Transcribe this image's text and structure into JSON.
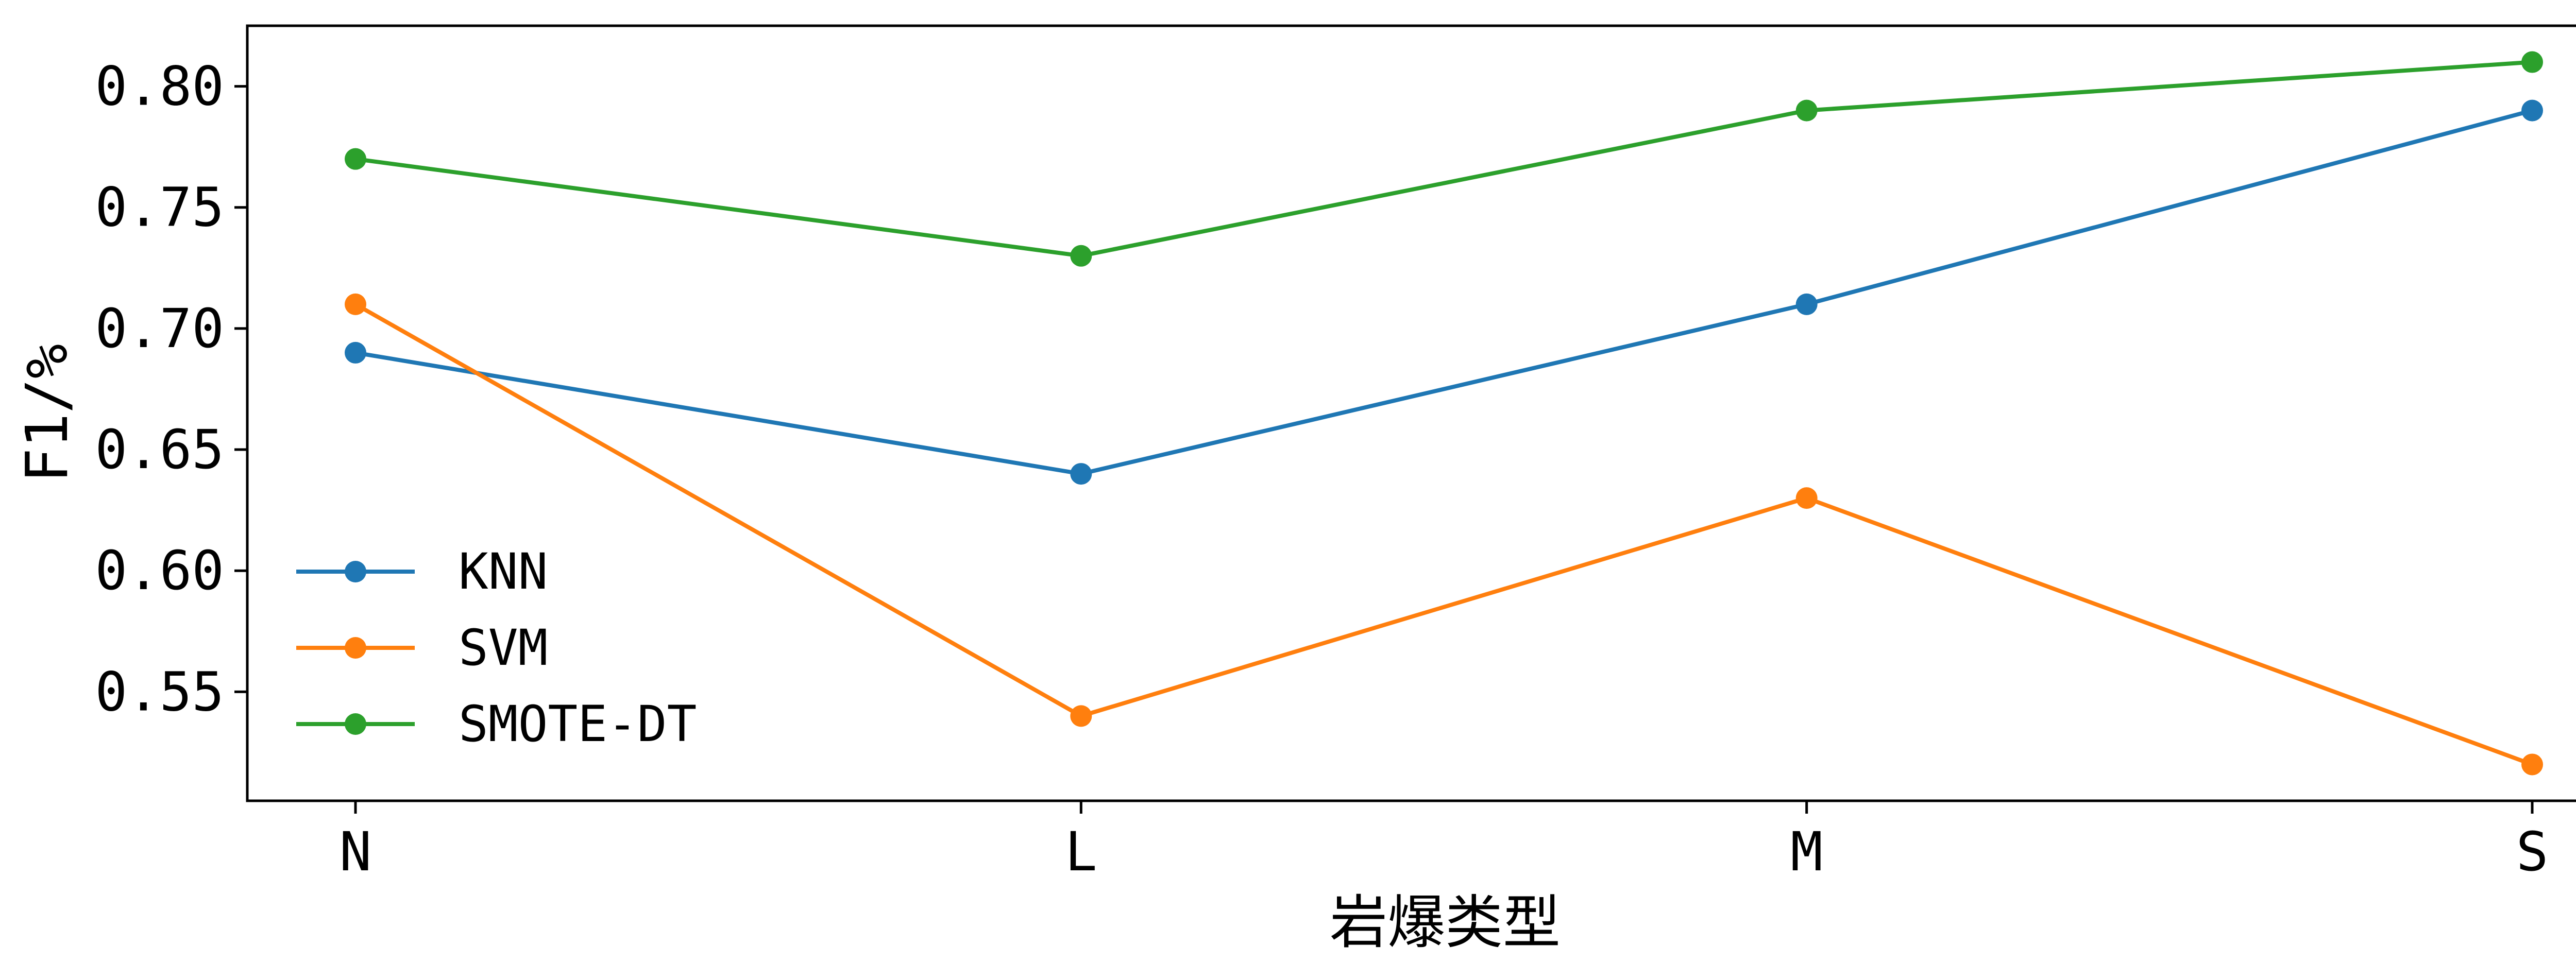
{
  "chart_data": {
    "type": "line",
    "categories": [
      "N",
      "L",
      "M",
      "S"
    ],
    "xlabel": "岩爆类型",
    "ylabel": "F1/%",
    "ylim": [
      0.505,
      0.825
    ],
    "yticks": [
      "0.55",
      "0.60",
      "0.65",
      "0.70",
      "0.75",
      "0.80"
    ],
    "grid": false,
    "legend_position": "lower-left",
    "series": [
      {
        "name": "KNN",
        "color": "#1f77b4",
        "values": [
          0.69,
          0.64,
          0.71,
          0.79
        ]
      },
      {
        "name": "SVM",
        "color": "#ff7f0e",
        "values": [
          0.71,
          0.54,
          0.63,
          0.52
        ]
      },
      {
        "name": "SMOTE-DT",
        "color": "#2ca02c",
        "values": [
          0.77,
          0.73,
          0.79,
          0.81
        ]
      }
    ]
  }
}
